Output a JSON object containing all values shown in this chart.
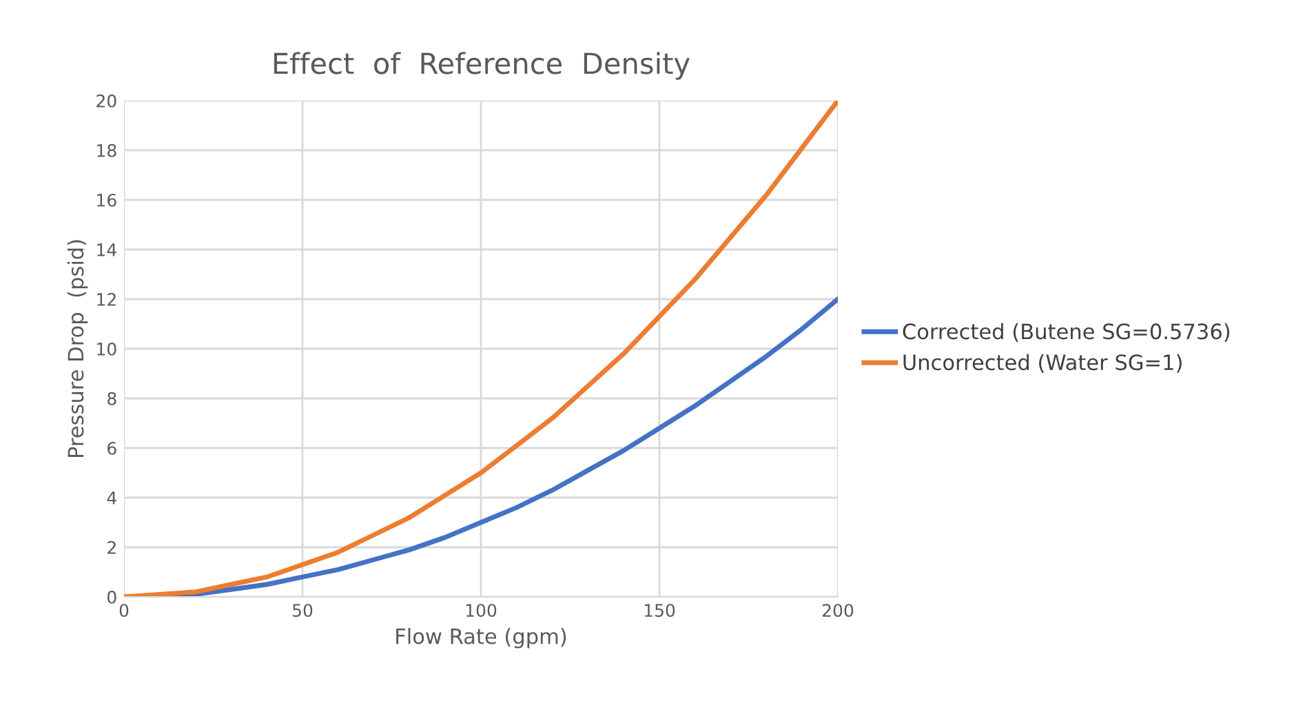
{
  "chart_data": {
    "type": "line",
    "title": "Effect  of  Reference  Density",
    "xlabel": "Flow Rate (gpm)",
    "ylabel": "Pressure Drop  (psid)",
    "x": [
      0,
      10,
      20,
      30,
      40,
      50,
      60,
      70,
      80,
      90,
      100,
      110,
      120,
      130,
      140,
      150,
      160,
      170,
      180,
      190,
      200
    ],
    "series": [
      {
        "name": "Corrected (Butene SG=0.5736)",
        "color": "#4472c4",
        "values": [
          0,
          0.0,
          0.1,
          0.3,
          0.5,
          0.8,
          1.1,
          1.5,
          1.9,
          2.4,
          3.0,
          3.6,
          4.3,
          5.1,
          5.9,
          6.8,
          7.7,
          8.7,
          9.7,
          10.8,
          12.0
        ]
      },
      {
        "name": "Uncorrected (Water SG=1)",
        "color": "#ed7d31",
        "values": [
          0,
          0.1,
          0.2,
          0.5,
          0.8,
          1.3,
          1.8,
          2.5,
          3.2,
          4.1,
          5.0,
          6.1,
          7.2,
          8.5,
          9.8,
          11.3,
          12.8,
          14.5,
          16.2,
          18.1,
          20.0
        ]
      }
    ],
    "xlim": [
      0,
      200
    ],
    "xticks": [
      0,
      50,
      100,
      150,
      200
    ],
    "ylim": [
      0,
      20
    ],
    "yticks": [
      0,
      2,
      4,
      6,
      8,
      10,
      12,
      14,
      16,
      18,
      20
    ],
    "grid": true,
    "legend": "right",
    "marker": "none",
    "line_style": "solid"
  }
}
